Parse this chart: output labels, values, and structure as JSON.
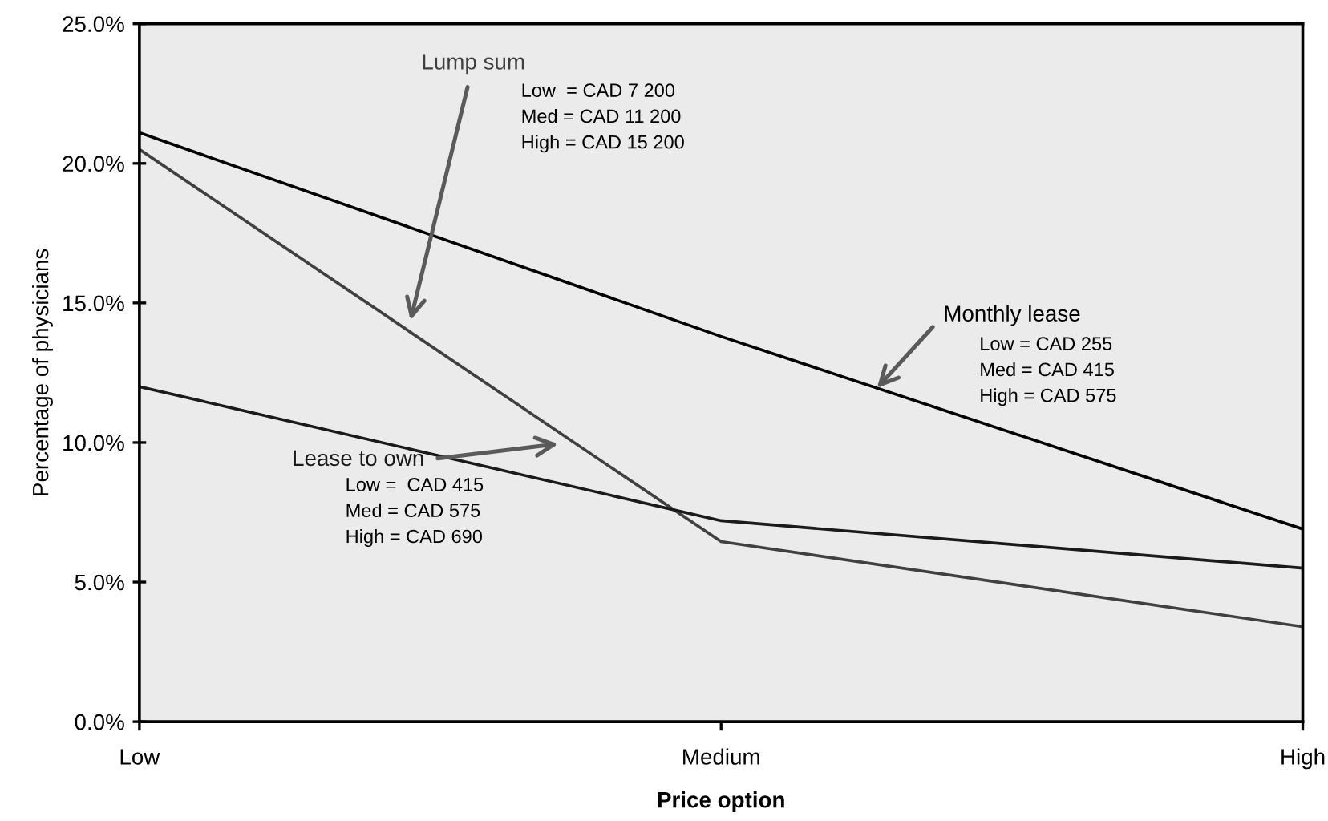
{
  "chart_data": {
    "type": "line",
    "xlabel": "Price option",
    "ylabel": "Percentage of physicians",
    "categories": [
      "Low",
      "Medium",
      "High"
    ],
    "series": [
      {
        "name": "Lump sum",
        "color": "#404040",
        "values": [
          20.5,
          6.45,
          3.4
        ]
      },
      {
        "name": "Monthly lease",
        "color": "#000000",
        "values": [
          21.1,
          13.8,
          6.9
        ]
      },
      {
        "name": "Lease to own",
        "color": "#1a1a1a",
        "values": [
          12.0,
          7.2,
          5.5
        ]
      }
    ],
    "ylim": [
      0,
      25
    ],
    "yticks": [
      {
        "value": 0,
        "label": "0.0%"
      },
      {
        "value": 5,
        "label": "5.0%"
      },
      {
        "value": 10,
        "label": "10.0%"
      },
      {
        "value": 15,
        "label": "15.0%"
      },
      {
        "value": 20,
        "label": "20.0%"
      },
      {
        "value": 25,
        "label": "25.0%"
      }
    ],
    "annotations": [
      "Low  = CAD 7 200\nMed = CAD 11 200\nHigh = CAD 15 200",
      "Low = CAD 255\nMed = CAD 415\nHigh = CAD 575",
      "Low =  CAD 415\nMed = CAD 575\nHigh = CAD 690"
    ],
    "grid": false,
    "legend": false,
    "marker": "none",
    "line_style": "solid"
  }
}
